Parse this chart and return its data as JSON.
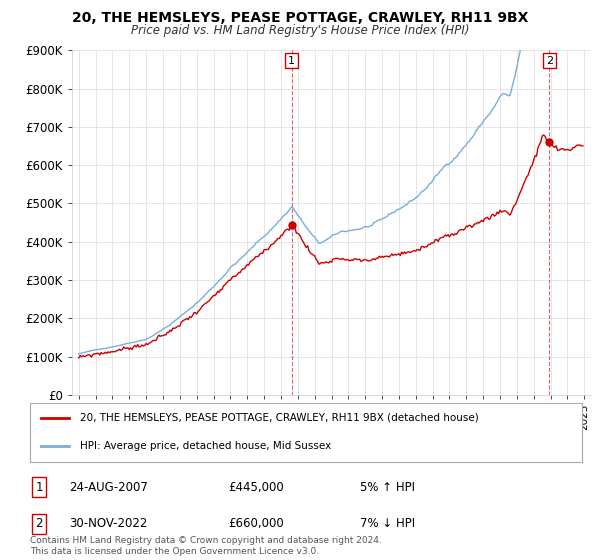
{
  "title": "20, THE HEMSLEYS, PEASE POTTAGE, CRAWLEY, RH11 9BX",
  "subtitle": "Price paid vs. HM Land Registry's House Price Index (HPI)",
  "legend_line1": "20, THE HEMSLEYS, PEASE POTTAGE, CRAWLEY, RH11 9BX (detached house)",
  "legend_line2": "HPI: Average price, detached house, Mid Sussex",
  "sale1_label": "1",
  "sale1_date": "24-AUG-2007",
  "sale1_price": "£445,000",
  "sale1_hpi": "5% ↑ HPI",
  "sale2_label": "2",
  "sale2_date": "30-NOV-2022",
  "sale2_price": "£660,000",
  "sale2_hpi": "7% ↓ HPI",
  "footer": "Contains HM Land Registry data © Crown copyright and database right 2024.\nThis data is licensed under the Open Government Licence v3.0.",
  "hpi_color": "#7aaddc",
  "price_color": "#cc0000",
  "marker_color": "#cc0000",
  "vline_color": "#cc0000",
  "ylim": [
    0,
    900000
  ],
  "yticks": [
    0,
    100000,
    200000,
    300000,
    400000,
    500000,
    600000,
    700000,
    800000,
    900000
  ],
  "ytick_labels": [
    "£0",
    "£100K",
    "£200K",
    "£300K",
    "£400K",
    "£500K",
    "£600K",
    "£700K",
    "£800K",
    "£900K"
  ],
  "sale1_year": 2007.64,
  "sale1_value": 445000,
  "sale2_year": 2022.92,
  "sale2_value": 660000,
  "bg_color": "#ffffff",
  "grid_color": "#e0e0e0"
}
